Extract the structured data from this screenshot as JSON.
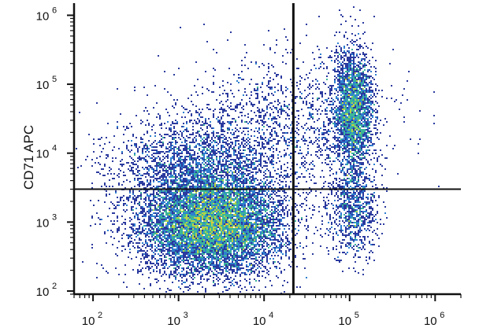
{
  "chart_data": {
    "type": "scatter",
    "style": "density flow cytometry dot plot",
    "title": "",
    "xlabel": "",
    "ylabel": "CD71 APC",
    "x_scale": "log",
    "y_scale": "log",
    "xlim": [
      60,
      2000000
    ],
    "ylim": [
      90,
      1500000
    ],
    "x_ticks": [
      {
        "base": "10",
        "exp": "2",
        "value": 100
      },
      {
        "base": "10",
        "exp": "3",
        "value": 1000
      },
      {
        "base": "10",
        "exp": "4",
        "value": 10000
      },
      {
        "base": "10",
        "exp": "5",
        "value": 100000
      },
      {
        "base": "10",
        "exp": "6",
        "value": 1000000
      }
    ],
    "y_ticks": [
      {
        "base": "10",
        "exp": "2",
        "value": 100
      },
      {
        "base": "10",
        "exp": "3",
        "value": 1000
      },
      {
        "base": "10",
        "exp": "4",
        "value": 10000
      },
      {
        "base": "10",
        "exp": "5",
        "value": 100000
      },
      {
        "base": "10",
        "exp": "6",
        "value": 1000000
      }
    ],
    "quadrant_gates": {
      "x": 22000,
      "y": 3000
    },
    "populations": [
      {
        "center_x": 2500,
        "center_y": 900,
        "spread_x_decades": 0.42,
        "spread_y_decades": 0.36,
        "density": "high"
      },
      {
        "center_x": 1800,
        "center_y": 6000,
        "spread_x_decades": 0.5,
        "spread_y_decades": 0.4,
        "density": "medium"
      },
      {
        "center_x": 110000,
        "center_y": 40000,
        "spread_x_decades": 0.12,
        "spread_y_decades": 0.45,
        "density": "medium"
      },
      {
        "center_x": 110000,
        "center_y": 1500,
        "spread_x_decades": 0.14,
        "spread_y_decades": 0.35,
        "density": "low"
      },
      {
        "center_x": 20000,
        "center_y": 30000,
        "spread_x_decades": 0.6,
        "spread_y_decades": 0.5,
        "density": "sparse"
      }
    ],
    "colors": {
      "low": "#2b3a9e",
      "mid_low": "#2f7fd0",
      "mid": "#3bb59a",
      "mid_high": "#b6d34a",
      "high": "#f2c630",
      "peak": "#e8441e",
      "gate_lines": "#111111"
    },
    "grid": false,
    "legend": "none"
  }
}
